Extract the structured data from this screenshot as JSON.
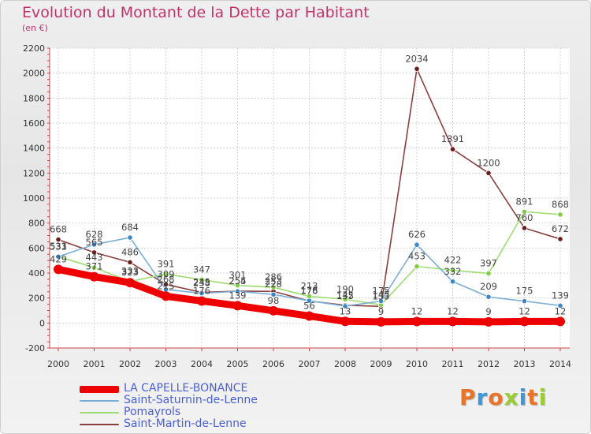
{
  "header": {
    "title": "Evolution du Montant de la Dette par Habitant",
    "subtitle": "(en €)"
  },
  "logo": {
    "text": "Proxiti"
  },
  "chart_data": {
    "type": "line",
    "x": [
      2000,
      2001,
      2002,
      2003,
      2004,
      2005,
      2006,
      2007,
      2008,
      2009,
      2010,
      2011,
      2012,
      2013,
      2014
    ],
    "yticks": [
      -200,
      0,
      200,
      400,
      600,
      800,
      1000,
      1200,
      1400,
      1600,
      1800,
      2000,
      2200
    ],
    "ylim": [
      -200,
      2200
    ],
    "grid": true,
    "legend_position": "bottom-left",
    "series": [
      {
        "name": "LA CAPELLE-BONANCE",
        "color": "#ee0000",
        "marker": "#ee0000",
        "width": 9,
        "values": [
          429,
          371,
          323,
          215,
          176,
          139,
          98,
          56,
          13,
          9,
          12,
          12,
          9,
          12,
          12
        ]
      },
      {
        "name": "Saint-Saturnin-de-Lenne",
        "color": "#7aaed6",
        "marker": "#3f86c8",
        "width": 1.6,
        "values": [
          531,
          628,
          684,
          268,
          238,
          254,
          228,
          178,
          135,
          175,
          626,
          332,
          209,
          175,
          139
        ]
      },
      {
        "name": "Pomayrols",
        "color": "#9ddc70",
        "marker": "#7fcc45",
        "width": 1.6,
        "values": [
          533,
          443,
          333,
          391,
          347,
          301,
          286,
          213,
          190,
          145,
          453,
          422,
          397,
          891,
          868
        ]
      },
      {
        "name": "Saint-Martin-de-Lenne",
        "color": "#8a3f3f",
        "marker": "#6b1d1d",
        "width": 1.6,
        "values": [
          668,
          565,
          486,
          309,
          245,
          255,
          253,
          176,
          142,
          133,
          2034,
          1391,
          1200,
          760,
          672
        ]
      }
    ],
    "labels": [
      {
        "series": 0,
        "values": [
          "429",
          "371",
          "323",
          "215",
          "176",
          "139",
          "98",
          "56",
          "13",
          "9",
          "12",
          "12",
          "9",
          "12",
          "12"
        ]
      },
      {
        "series": 1,
        "values": [
          "531",
          "628",
          "684",
          "268",
          "238",
          "254",
          "228",
          "178",
          "135",
          "175",
          "626",
          "332",
          "209",
          "175",
          "139"
        ]
      },
      {
        "series": 2,
        "values": [
          "533",
          "443",
          "333",
          "391",
          "347",
          "301",
          "286",
          "213",
          "190",
          "145",
          "453",
          "422",
          "397",
          "891",
          "868"
        ]
      },
      {
        "series": 3,
        "values": [
          "668",
          "565",
          "486",
          "309",
          "245",
          "255",
          "253",
          "176",
          "142",
          "133",
          "2034",
          "1391",
          "1200",
          "760",
          "672"
        ]
      }
    ]
  }
}
